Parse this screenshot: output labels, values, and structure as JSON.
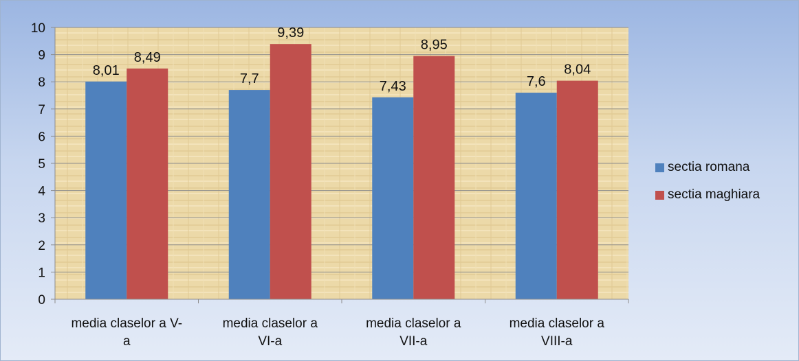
{
  "chart_data": {
    "type": "bar",
    "categories": [
      [
        "media claselor a V-",
        "a"
      ],
      [
        "media claselor a",
        "VI-a"
      ],
      [
        "media claselor a",
        "VII-a"
      ],
      [
        "media claselor a",
        "VIII-a"
      ]
    ],
    "series": [
      {
        "name": "sectia romana",
        "color": "#4f81bd",
        "values": [
          8.01,
          7.7,
          7.43,
          7.6
        ],
        "labels": [
          "8,01",
          "7,7",
          "7,43",
          "7,6"
        ]
      },
      {
        "name": "sectia maghiara",
        "color": "#c0504d",
        "values": [
          8.49,
          9.39,
          8.95,
          8.04
        ],
        "labels": [
          "8,49",
          "9,39",
          "8,95",
          "8,04"
        ]
      }
    ],
    "yticks": [
      "0",
      "1",
      "2",
      "3",
      "4",
      "5",
      "6",
      "7",
      "8",
      "9",
      "10"
    ],
    "ylim": [
      0,
      10
    ],
    "grid": true,
    "legend_position": "right",
    "plot_background": "#ead7a6",
    "background": "#b9cbea"
  }
}
